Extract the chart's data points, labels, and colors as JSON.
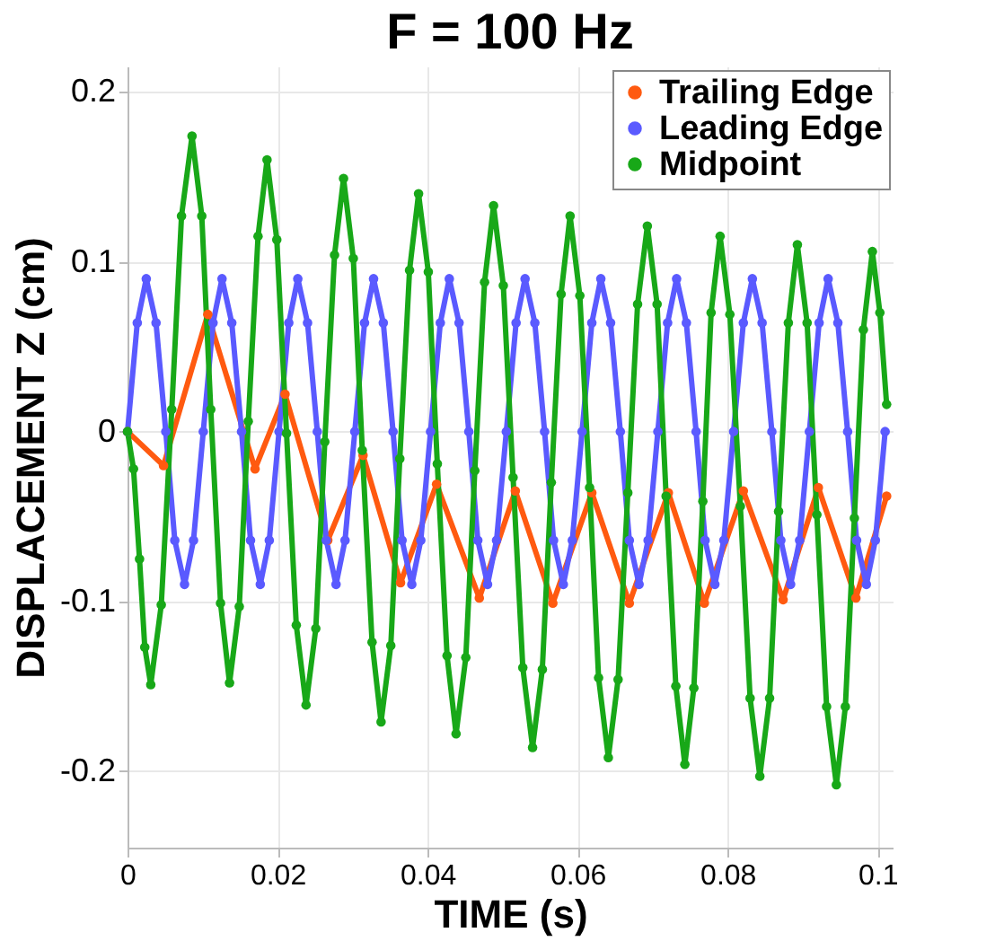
{
  "chart_data": {
    "type": "line",
    "title": "F = 100 Hz",
    "xlabel": "TIME (s)",
    "ylabel": "DISPLACEMENT Z (cm)",
    "xlim": [
      0,
      0.102
    ],
    "xticks": [
      0,
      0.02,
      0.04,
      0.06,
      0.08,
      0.1
    ],
    "ylim": [
      -0.245,
      0.215
    ],
    "yticks": [
      -0.2,
      -0.1,
      0,
      0.1,
      0.2
    ],
    "grid": true,
    "legend": "top right",
    "marker": "circle",
    "line_style": "solid",
    "series": [
      {
        "name": "Trailing Edge",
        "color": "#ff5a10",
        "x": [
          0,
          0.0048,
          0.0107,
          0.017,
          0.021,
          0.0267,
          0.0314,
          0.0364,
          0.0412,
          0.0469,
          0.0517,
          0.0567,
          0.0619,
          0.0669,
          0.0721,
          0.0769,
          0.0821,
          0.0874,
          0.0921,
          0.0971,
          0.1012
        ],
        "values": [
          0,
          -0.02,
          0.069,
          -0.022,
          0.022,
          -0.064,
          -0.014,
          -0.089,
          -0.031,
          -0.098,
          -0.035,
          -0.101,
          -0.036,
          -0.101,
          -0.036,
          -0.101,
          -0.035,
          -0.099,
          -0.033,
          -0.098,
          -0.038
        ]
      },
      {
        "name": "Leading Edge",
        "color": "#5a5aff",
        "x": [
          0,
          0.0013,
          0.0025,
          0.0038,
          0.0051,
          0.0063,
          0.0076,
          0.0088,
          0.0101,
          0.0114,
          0.0126,
          0.0139,
          0.0152,
          0.0164,
          0.0177,
          0.0189,
          0.0202,
          0.0215,
          0.0227,
          0.024,
          0.0253,
          0.0265,
          0.0278,
          0.029,
          0.0303,
          0.0316,
          0.0328,
          0.0341,
          0.0354,
          0.0366,
          0.0379,
          0.0391,
          0.0404,
          0.0417,
          0.0429,
          0.0442,
          0.0455,
          0.0467,
          0.048,
          0.0492,
          0.0505,
          0.0518,
          0.053,
          0.0543,
          0.0556,
          0.0568,
          0.0581,
          0.0593,
          0.0606,
          0.0619,
          0.0631,
          0.0644,
          0.0657,
          0.0669,
          0.0682,
          0.0694,
          0.0707,
          0.072,
          0.0732,
          0.0745,
          0.0758,
          0.077,
          0.0783,
          0.0795,
          0.0808,
          0.0821,
          0.0833,
          0.0846,
          0.0859,
          0.0871,
          0.0884,
          0.0896,
          0.0909,
          0.0922,
          0.0934,
          0.0947,
          0.096,
          0.0972,
          0.0985,
          0.0997,
          0.101
        ],
        "values": [
          0,
          0.064,
          0.09,
          0.064,
          0,
          -0.064,
          -0.09,
          -0.064,
          0,
          0.064,
          0.09,
          0.064,
          0,
          -0.064,
          -0.09,
          -0.064,
          0,
          0.064,
          0.09,
          0.064,
          0,
          -0.064,
          -0.09,
          -0.064,
          0,
          0.064,
          0.09,
          0.064,
          0,
          -0.064,
          -0.09,
          -0.064,
          0,
          0.064,
          0.09,
          0.064,
          0,
          -0.064,
          -0.09,
          -0.064,
          0,
          0.064,
          0.09,
          0.064,
          0,
          -0.064,
          -0.09,
          -0.064,
          0,
          0.064,
          0.09,
          0.064,
          0,
          -0.064,
          -0.09,
          -0.064,
          0,
          0.064,
          0.09,
          0.064,
          0,
          -0.064,
          -0.09,
          -0.064,
          0,
          0.064,
          0.09,
          0.064,
          0,
          -0.064,
          -0.09,
          -0.064,
          0,
          0.064,
          0.09,
          0.064,
          0,
          -0.064,
          -0.09,
          -0.064,
          0
        ]
      },
      {
        "name": "Midpoint",
        "color": "#18a818",
        "x": [
          0,
          0.0008,
          0.0016,
          0.0023,
          0.0031,
          0.0045,
          0.0059,
          0.0072,
          0.0086,
          0.0099,
          0.0111,
          0.0124,
          0.0136,
          0.0149,
          0.0161,
          0.0174,
          0.0186,
          0.0199,
          0.0212,
          0.0225,
          0.0238,
          0.0251,
          0.0263,
          0.0276,
          0.0288,
          0.0301,
          0.0313,
          0.0326,
          0.0338,
          0.0351,
          0.0363,
          0.0376,
          0.0388,
          0.0401,
          0.0413,
          0.0426,
          0.0438,
          0.0451,
          0.0463,
          0.0476,
          0.0488,
          0.0501,
          0.0514,
          0.0527,
          0.054,
          0.0553,
          0.0565,
          0.0578,
          0.059,
          0.0603,
          0.0616,
          0.0628,
          0.0641,
          0.0654,
          0.0667,
          0.068,
          0.0693,
          0.0706,
          0.0718,
          0.0731,
          0.0743,
          0.0755,
          0.0767,
          0.0778,
          0.079,
          0.0803,
          0.0817,
          0.083,
          0.0843,
          0.0856,
          0.0868,
          0.0881,
          0.0893,
          0.0906,
          0.0919,
          0.0932,
          0.0945,
          0.0957,
          0.0969,
          0.0981,
          0.0993,
          0.1003,
          0.1012
        ],
        "values": [
          0,
          -0.022,
          -0.075,
          -0.127,
          -0.149,
          -0.102,
          0.013,
          0.127,
          0.174,
          0.127,
          0.013,
          -0.101,
          -0.148,
          -0.103,
          0.006,
          0.115,
          0.16,
          0.113,
          -0.001,
          -0.114,
          -0.161,
          -0.116,
          -0.006,
          0.104,
          0.149,
          0.102,
          -0.011,
          -0.124,
          -0.171,
          -0.126,
          -0.016,
          0.095,
          0.14,
          0.094,
          -0.019,
          -0.132,
          -0.178,
          -0.133,
          -0.023,
          0.088,
          0.133,
          0.086,
          -0.027,
          -0.139,
          -0.186,
          -0.14,
          -0.03,
          0.081,
          0.127,
          0.08,
          -0.033,
          -0.145,
          -0.192,
          -0.146,
          -0.036,
          0.075,
          0.121,
          0.075,
          -0.038,
          -0.15,
          -0.196,
          -0.151,
          -0.041,
          0.07,
          0.115,
          0.069,
          -0.044,
          -0.157,
          -0.203,
          -0.157,
          -0.047,
          0.064,
          0.11,
          0.064,
          -0.049,
          -0.162,
          -0.208,
          -0.162,
          -0.051,
          0.06,
          0.106,
          0.07,
          0.016
        ]
      }
    ]
  }
}
